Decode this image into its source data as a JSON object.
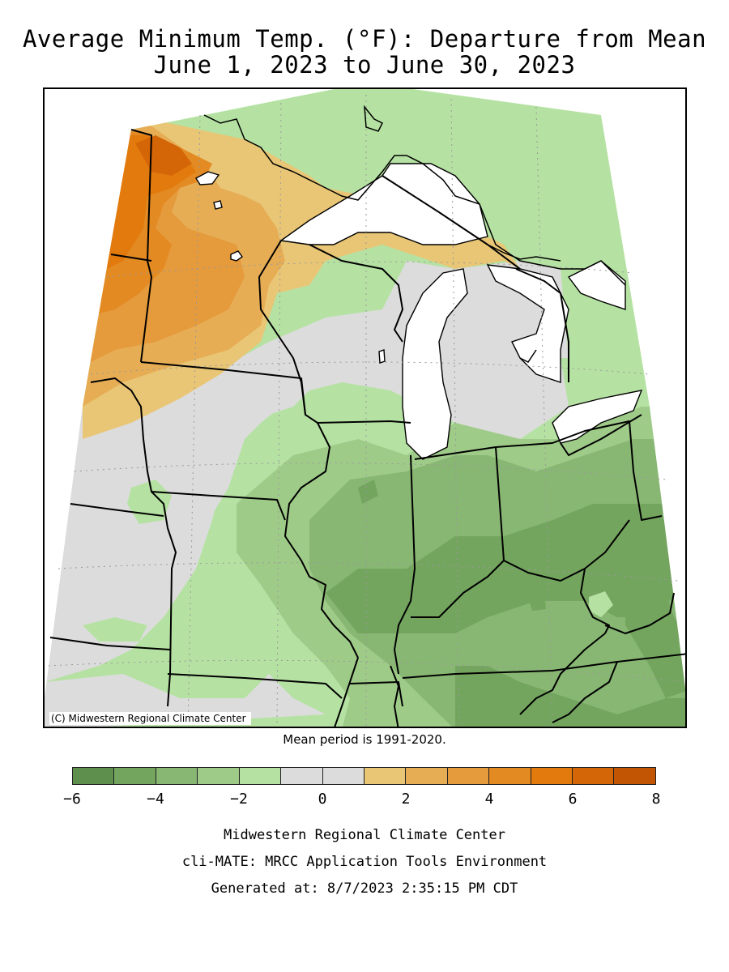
{
  "title_line1": "Average Minimum Temp. (°F): Departure from Mean",
  "title_line2": "June 1, 2023 to June 30, 2023",
  "map_credit": "(C) Midwestern Regional Climate Center",
  "mean_period": "Mean period is 1991-2020.",
  "legend": {
    "colors": [
      "#5e8f4c",
      "#74a55f",
      "#88b773",
      "#9fcb89",
      "#b5e2a2",
      "#dcdcdc",
      "#dcdcdc",
      "#e9c676",
      "#e6ad55",
      "#e59a3c",
      "#e38a23",
      "#e27a0d",
      "#d46608",
      "#c15503"
    ],
    "ticks": [
      "−6",
      "−4",
      "−2",
      "0",
      "2",
      "4",
      "6",
      "8"
    ]
  },
  "footer": {
    "line1": "Midwestern Regional Climate Center",
    "line2": "cli-MATE: MRCC Application Tools Environment",
    "line3": "Generated at: 8/7/2023 2:35:15 PM CDT"
  }
}
